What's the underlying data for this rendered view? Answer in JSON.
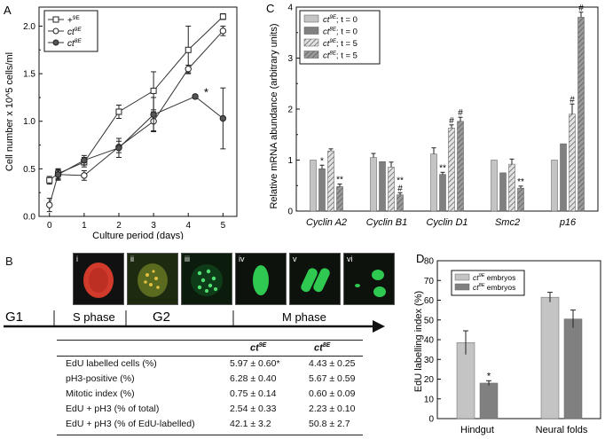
{
  "chart_data": [
    {
      "type": "line",
      "panel": "A",
      "xlabel": "Culture period (days)",
      "ylabel": "Cell number x 10^5 cells/ml",
      "xlim": [
        -0.3,
        5.4
      ],
      "ylim": [
        0,
        2.2
      ],
      "xticks": [
        "0",
        "1",
        "2",
        "3",
        "4",
        "5"
      ],
      "yticks": [
        "0.0",
        "0.5",
        "1.0",
        "1.5",
        "2.0"
      ],
      "series": [
        {
          "name": "+9E",
          "base": "+",
          "sup": "9E",
          "marker": "square",
          "x": [
            0,
            0.25,
            1,
            2,
            3,
            4,
            5
          ],
          "y": [
            0.38,
            0.45,
            0.57,
            1.1,
            1.32,
            1.75,
            2.1
          ],
          "err": [
            0.04,
            0.05,
            0.05,
            0.07,
            0.2,
            0.25,
            0.03
          ]
        },
        {
          "name": "ct9E",
          "base": "ct",
          "sup": "9E",
          "marker": "circle-open",
          "x": [
            0,
            0.25,
            1,
            2,
            3,
            4,
            5
          ],
          "y": [
            0.12,
            0.44,
            0.43,
            0.73,
            1.0,
            1.55,
            1.95
          ],
          "err": [
            0.07,
            0.05,
            0.05,
            0.06,
            0.1,
            0.04,
            0.05
          ]
        },
        {
          "name": "ct8E",
          "base": "ct",
          "sup": "8E",
          "marker": "circle-filled",
          "x": [
            0.25,
            1,
            2,
            3,
            4.2,
            5
          ],
          "y": [
            0.44,
            0.59,
            0.72,
            1.07,
            1.26,
            1.03
          ],
          "err": [
            0.06,
            0.05,
            0.1,
            0.18,
            0.02,
            0.32
          ]
        }
      ],
      "annotations": [
        {
          "text": "*",
          "x": 4.45,
          "y": 1.3
        }
      ]
    },
    {
      "type": "bar",
      "panel": "C",
      "ylabel": "Relative mRNA abundance (arbitrary units)",
      "ylim": [
        0,
        4
      ],
      "yticks": [
        "0",
        "1",
        "2",
        "3",
        "4"
      ],
      "categories": [
        "Cyclin A2",
        "Cyclin B1",
        "Cyclin D1",
        "Smc2",
        "p16"
      ],
      "series": [
        {
          "name": "ct9E; t = 0",
          "base": "ct",
          "sup": "9E",
          "suffix": "; t = 0",
          "pattern": "solid-light",
          "values": [
            1.0,
            1.05,
            1.12,
            1.0,
            1.0
          ],
          "err": [
            0,
            0.08,
            0.12,
            0,
            0
          ]
        },
        {
          "name": "ct8E; t = 0",
          "base": "ct",
          "sup": "8E",
          "suffix": "; t = 0",
          "pattern": "solid-dark",
          "values": [
            0.83,
            0.97,
            0.72,
            0.75,
            1.32
          ],
          "err": [
            0.07,
            0,
            0.04,
            0,
            0
          ]
        },
        {
          "name": "ct9E; t = 5",
          "base": "ct",
          "sup": "9E",
          "suffix": "; t = 5",
          "pattern": "hatch-light",
          "values": [
            1.18,
            0.86,
            1.63,
            0.92,
            1.9
          ],
          "err": [
            0.04,
            0.1,
            0.06,
            0.1,
            0.2
          ]
        },
        {
          "name": "ct8E; t = 5",
          "base": "ct",
          "sup": "8E",
          "suffix": "; t = 5",
          "pattern": "hatch-dark",
          "values": [
            0.48,
            0.32,
            1.76,
            0.45,
            3.8
          ],
          "err": [
            0.05,
            0.04,
            0.08,
            0.04,
            0.1
          ]
        }
      ],
      "markers": [
        {
          "category": "Cyclin A2",
          "series": 1,
          "text": "*"
        },
        {
          "category": "Cyclin A2",
          "series": 3,
          "text": "**"
        },
        {
          "category": "Cyclin B1",
          "series": 3,
          "text": "#"
        },
        {
          "category": "Cyclin B1",
          "series": 3,
          "text": "**"
        },
        {
          "category": "Cyclin D1",
          "series": 1,
          "text": "**"
        },
        {
          "category": "Cyclin D1",
          "series": 2,
          "text": "#"
        },
        {
          "category": "Cyclin D1",
          "series": 3,
          "text": "#"
        },
        {
          "category": "Smc2",
          "series": 3,
          "text": "**"
        },
        {
          "category": "p16",
          "series": 2,
          "text": "#"
        },
        {
          "category": "p16",
          "series": 3,
          "text": "#"
        },
        {
          "category": "p16",
          "series": 3,
          "text": "**"
        }
      ]
    },
    {
      "type": "bar",
      "panel": "D",
      "ylabel": "EdU labelling index (%)",
      "ylim": [
        0,
        80
      ],
      "yticks": [
        "0",
        "10",
        "20",
        "30",
        "40",
        "50",
        "60",
        "70",
        "80"
      ],
      "categories": [
        "Hindgut",
        "Neural folds"
      ],
      "series": [
        {
          "name": "ct9E embryos",
          "base": "ct",
          "sup": "9E",
          "suffix": " embryos",
          "values": [
            38.5,
            61.5
          ],
          "err": [
            6,
            2.5
          ]
        },
        {
          "name": "ct8E embryos",
          "base": "ct",
          "sup": "8E",
          "suffix": " embryos",
          "values": [
            18,
            50.5
          ],
          "err": [
            1.2,
            4.5
          ]
        }
      ],
      "markers": [
        {
          "category": "Hindgut",
          "series": 1,
          "text": "*"
        }
      ]
    },
    {
      "type": "table",
      "panel": "B",
      "columns": [
        {
          "base": "ct",
          "sup": "9E"
        },
        {
          "base": "ct",
          "sup": "8E"
        }
      ],
      "rows": [
        {
          "label": "EdU labelled cells (%)",
          "c1": "5.97 ± 0.60*",
          "c2": "4.43 ± 0.25"
        },
        {
          "label": "pH3-positive  (%)",
          "c1": "6.28 ± 0.40",
          "c2": "5.67 ± 0.59"
        },
        {
          "label": "Mitotic index   (%)",
          "c1": "0.75 ± 0.14",
          "c2": "0.60 ± 0.09"
        },
        {
          "label": "EdU + pH3  (% of total)",
          "c1": "2.54 ± 0.33",
          "c2": "2.23 ± 0.10"
        },
        {
          "label": "EdU + pH3   (% of EdU-labelled)",
          "c1": "42.1 ± 3.2",
          "c2": "50.8 ± 2.7"
        }
      ]
    }
  ],
  "panel_labels": {
    "a": "A",
    "b": "B",
    "c": "C",
    "d": "D"
  },
  "cell_cycle": {
    "phases": [
      "G1",
      "S phase",
      "G2",
      "M phase"
    ],
    "micrographs": [
      "i",
      "ii",
      "iii",
      "iv",
      "v",
      "vi"
    ]
  },
  "colors": {
    "bar_light": "#c4c4c4",
    "bar_dark": "#808080",
    "line": "#333333"
  }
}
